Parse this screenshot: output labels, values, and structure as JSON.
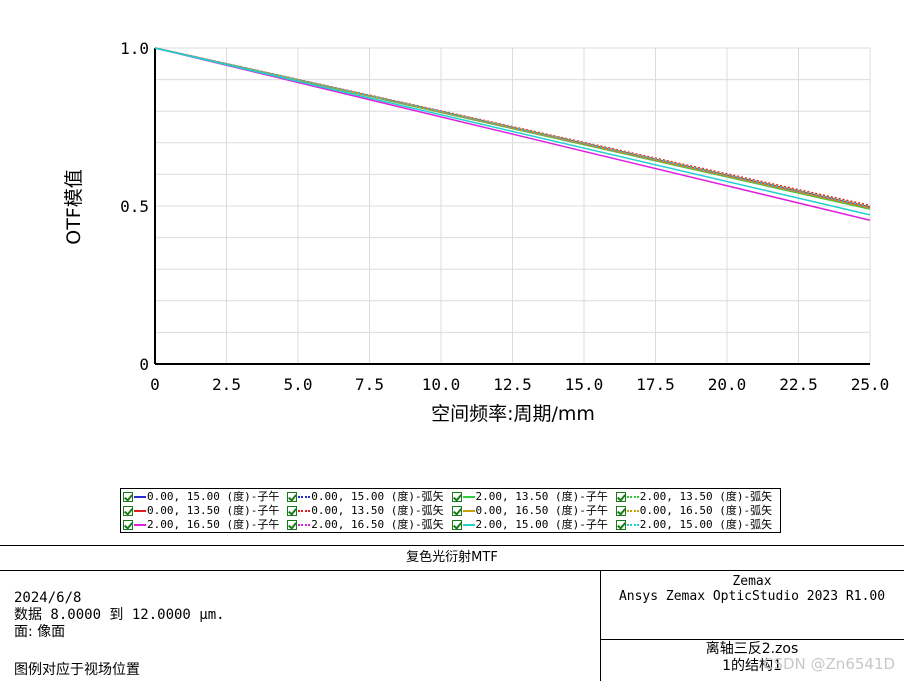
{
  "chart_data": {
    "type": "line",
    "title": "",
    "xlabel": "空间频率:周期/mm",
    "ylabel": "OTF模值",
    "xlim": [
      0,
      25
    ],
    "ylim": [
      0,
      1
    ],
    "x_ticks": [
      "0",
      "2.5",
      "5.0",
      "7.5",
      "10.0",
      "12.5",
      "15.0",
      "17.5",
      "20.0",
      "22.5",
      "25.0"
    ],
    "y_ticks": [
      "0",
      "0.5",
      "1.0"
    ],
    "grid": true,
    "legend_placement": "bottom",
    "series": [
      {
        "name": "0.00, 15.00 (度)-子午",
        "color": "#2b2bd6",
        "dash": "solid",
        "x": [
          0,
          25
        ],
        "y": [
          1.0,
          0.495
        ]
      },
      {
        "name": "0.00, 15.00 (度)-弧矢",
        "color": "#2b2bd6",
        "dash": "dotted",
        "x": [
          0,
          25
        ],
        "y": [
          1.0,
          0.5
        ]
      },
      {
        "name": "2.00, 13.50 (度)-子午",
        "color": "#2ecc40",
        "dash": "solid",
        "x": [
          0,
          25
        ],
        "y": [
          1.0,
          0.49
        ]
      },
      {
        "name": "2.00, 13.50 (度)-弧矢",
        "color": "#2ecc40",
        "dash": "dotted",
        "x": [
          0,
          25
        ],
        "y": [
          1.0,
          0.497
        ]
      },
      {
        "name": "0.00, 13.50 (度)-子午",
        "color": "#e02020",
        "dash": "solid",
        "x": [
          0,
          25
        ],
        "y": [
          1.0,
          0.497
        ]
      },
      {
        "name": "0.00, 13.50 (度)-弧矢",
        "color": "#e02020",
        "dash": "dotted",
        "x": [
          0,
          25
        ],
        "y": [
          1.0,
          0.502
        ]
      },
      {
        "name": "0.00, 16.50 (度)-子午",
        "color": "#c8a000",
        "dash": "solid",
        "x": [
          0,
          25
        ],
        "y": [
          1.0,
          0.493
        ]
      },
      {
        "name": "0.00, 16.50 (度)-弧矢",
        "color": "#c8a000",
        "dash": "dotted",
        "x": [
          0,
          25
        ],
        "y": [
          1.0,
          0.498
        ]
      },
      {
        "name": "2.00, 16.50 (度)-子午",
        "color": "#e020e0",
        "dash": "solid",
        "x": [
          0,
          25
        ],
        "y": [
          1.0,
          0.455
        ]
      },
      {
        "name": "2.00, 16.50 (度)-弧矢",
        "color": "#e020e0",
        "dash": "dotted",
        "x": [
          0,
          25
        ],
        "y": [
          1.0,
          0.495
        ]
      },
      {
        "name": "2.00, 15.00 (度)-子午",
        "color": "#20d0d0",
        "dash": "solid",
        "x": [
          0,
          25
        ],
        "y": [
          1.0,
          0.472
        ]
      },
      {
        "name": "2.00, 15.00 (度)-弧矢",
        "color": "#20d0d0",
        "dash": "dotted",
        "x": [
          0,
          25
        ],
        "y": [
          1.0,
          0.497
        ]
      }
    ]
  },
  "info_panel": {
    "title": "复色光衍射MTF",
    "date": "2024/6/8",
    "data_line": "数据 8.0000 到 12.0000 μm.",
    "surface_line": "面: 像面",
    "note": "图例对应于视场位置",
    "vendor": "Zemax",
    "product": "Ansys Zemax OpticStudio 2023 R1.00",
    "file": "离轴三反2.zos",
    "config": "1的结构1"
  },
  "watermark": "CSDN @Zn6541D"
}
